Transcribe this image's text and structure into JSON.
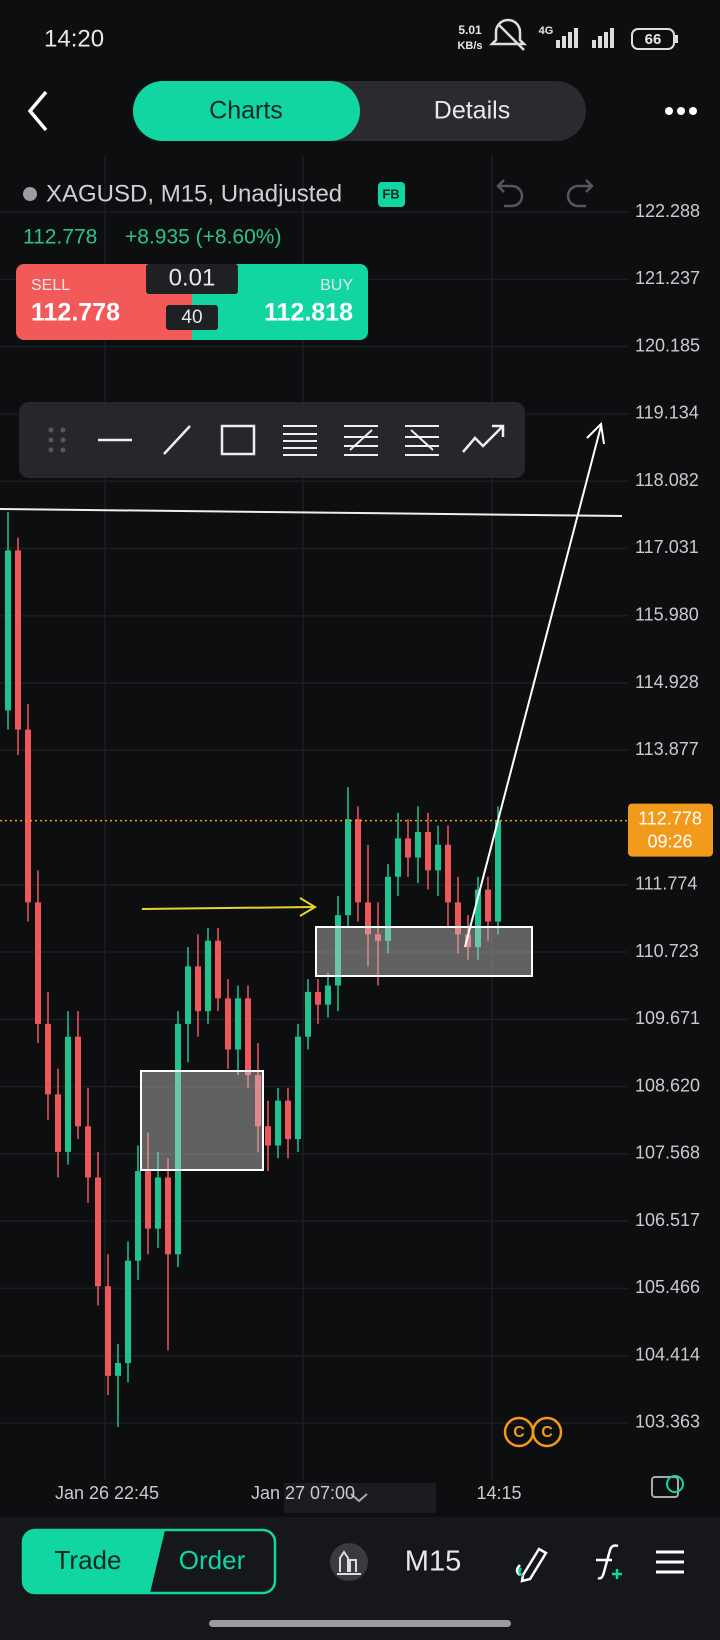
{
  "status_bar": {
    "time": "14:20",
    "speed": "5.01",
    "speed_unit": "KB/s",
    "network": "4G",
    "battery": "66"
  },
  "header": {
    "tabs": [
      "Charts",
      "Details"
    ]
  },
  "symbol": {
    "name": "XAGUSD, M15, Unadjusted",
    "badge": "FB"
  },
  "quote": {
    "price": "112.778",
    "change": "+8.935 (+8.60%)"
  },
  "trade_panel": {
    "sell_label": "SELL",
    "sell_price": "112.778",
    "lot": "0.01",
    "spread": "40",
    "buy_label": "BUY",
    "buy_price": "112.818"
  },
  "chart": {
    "ylim": [
      102.55,
      123.18
    ],
    "yticks": [
      122.288,
      121.237,
      120.185,
      119.134,
      118.082,
      117.031,
      {
        "value": 115.98,
        "label": "115.980"
      },
      114.928,
      113.877,
      111.774,
      110.723,
      109.671,
      {
        "value": 108.62,
        "label": "108.620"
      },
      107.568,
      106.517,
      105.466,
      104.414,
      103.363
    ],
    "xlabels": [
      "Jan 26 22:45",
      "Jan 27 07:00",
      "14:15"
    ],
    "current_price": 112.778,
    "countdown": "09:26",
    "logo": [
      "C",
      "C"
    ],
    "candles": [
      [
        114.5,
        117.6,
        114.2,
        117.0
      ],
      [
        117.0,
        117.2,
        113.8,
        114.2
      ],
      [
        114.2,
        114.6,
        111.2,
        111.5
      ],
      [
        111.5,
        112.0,
        109.3,
        109.6
      ],
      [
        109.6,
        110.1,
        108.1,
        108.5
      ],
      [
        108.5,
        108.9,
        107.2,
        107.6
      ],
      [
        107.6,
        109.8,
        107.4,
        109.4
      ],
      [
        109.4,
        109.8,
        107.8,
        108.0
      ],
      [
        108.0,
        108.6,
        106.8,
        107.2
      ],
      [
        107.2,
        107.6,
        105.2,
        105.5
      ],
      [
        105.5,
        106.0,
        103.8,
        104.1
      ],
      [
        104.1,
        104.6,
        103.3,
        104.3
      ],
      [
        104.3,
        106.2,
        104.0,
        105.9
      ],
      [
        105.9,
        107.7,
        105.6,
        107.3
      ],
      [
        107.3,
        107.9,
        106.0,
        106.4
      ],
      [
        106.4,
        107.6,
        106.1,
        107.2
      ],
      [
        107.2,
        107.5,
        104.5,
        106.0
      ],
      [
        106.0,
        109.8,
        105.8,
        109.6
      ],
      [
        109.6,
        110.8,
        109.0,
        110.5
      ],
      [
        110.5,
        111.0,
        109.4,
        109.8
      ],
      [
        109.8,
        111.1,
        109.6,
        110.9
      ],
      [
        110.9,
        111.1,
        109.8,
        110.0
      ],
      [
        110.0,
        110.3,
        108.9,
        109.2
      ],
      [
        109.2,
        110.2,
        108.8,
        110.0
      ],
      [
        110.0,
        110.2,
        108.6,
        108.8
      ],
      [
        108.8,
        109.3,
        107.6,
        108.0
      ],
      [
        108.0,
        108.4,
        107.3,
        107.7
      ],
      [
        107.7,
        108.6,
        107.5,
        108.4
      ],
      [
        108.4,
        108.6,
        107.5,
        107.8
      ],
      [
        107.8,
        109.6,
        107.6,
        109.4
      ],
      [
        109.4,
        110.3,
        109.2,
        110.1
      ],
      [
        110.1,
        110.3,
        109.6,
        109.9
      ],
      [
        109.9,
        110.4,
        109.7,
        110.2
      ],
      [
        110.2,
        111.6,
        109.8,
        111.3
      ],
      [
        111.3,
        113.3,
        111.1,
        112.8
      ],
      [
        112.8,
        113.0,
        111.2,
        111.5
      ],
      [
        111.5,
        112.4,
        110.5,
        111.0
      ],
      [
        111.0,
        111.5,
        110.2,
        110.9
      ],
      [
        110.9,
        112.1,
        110.7,
        111.9
      ],
      [
        111.9,
        112.9,
        111.6,
        112.5
      ],
      [
        112.5,
        112.8,
        111.9,
        112.2
      ],
      [
        112.2,
        113.0,
        111.8,
        112.6
      ],
      [
        112.6,
        112.9,
        111.7,
        112.0
      ],
      [
        112.0,
        112.7,
        111.6,
        112.4
      ],
      [
        112.4,
        112.7,
        111.1,
        111.5
      ],
      [
        111.5,
        111.9,
        110.7,
        111.0
      ],
      [
        111.0,
        111.3,
        110.6,
        110.8
      ],
      [
        110.8,
        111.9,
        110.6,
        111.7
      ],
      [
        111.7,
        111.9,
        110.9,
        111.2
      ],
      [
        111.2,
        113.0,
        111.0,
        112.778
      ]
    ]
  },
  "bottom_bar": {
    "trade": "Trade",
    "order": "Order",
    "timeframe": "M15"
  }
}
